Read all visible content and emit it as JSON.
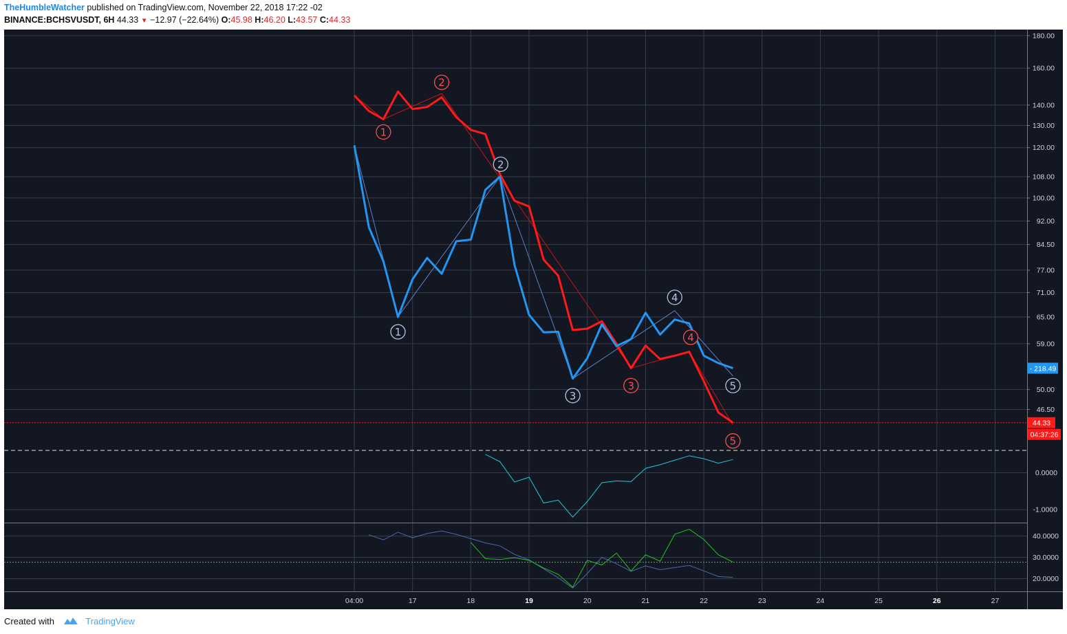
{
  "header": {
    "author": "TheHumbleWatcher",
    "published": "published on TradingView.com, November 22, 2018 17:22 -02",
    "symbol": "BINANCE:BCHSVUSDT, 6H",
    "last": "44.33",
    "change": "−12.97 (−22.64%)",
    "o_label": "O:",
    "o": "45.98",
    "h_label": "H:",
    "h": "46.20",
    "l_label": "L:",
    "l": "43.57",
    "c_label": "C:",
    "c": "44.33"
  },
  "footer": {
    "created": "Created with",
    "brand": "TradingView"
  },
  "colors": {
    "bg": "#131722",
    "grid": "#363c4e",
    "red": "#ff1a1a",
    "blue": "#2196f3",
    "cyan": "#26c6da",
    "green": "#22c322",
    "slate": "#4a6ba8",
    "text": "#d1d4dc"
  },
  "chart_data": [
    {
      "type": "line",
      "panel": "price",
      "y_scale": "log",
      "ylim": [
        40.5,
        184
      ],
      "x_ticks": [
        "04:00",
        "17",
        "18",
        "19",
        "20",
        "21",
        "22",
        "23",
        "24",
        "25",
        "26",
        "27"
      ],
      "bold_ticks": [
        "19",
        "26"
      ],
      "y_ticks": [
        "180.00",
        "160.00",
        "140.00",
        "130.00",
        "120.00",
        "108.00",
        "100.00",
        "92.00",
        "84.50",
        "77.00",
        "71.00",
        "65.00",
        "59.00",
        "50.00",
        "46.50"
      ],
      "series": [
        {
          "color": "red",
          "values": [
            145,
            137,
            133,
            147,
            138,
            139,
            144,
            134,
            128,
            126,
            109,
            99,
            97,
            80,
            75.5,
            62,
            62.3,
            64,
            59,
            54,
            58.6,
            55.8,
            56.5,
            57.3,
            51.5,
            46,
            44.33
          ]
        },
        {
          "color": "blue",
          "values": [
            121,
            90,
            79.5,
            65,
            74.5,
            80.5,
            76,
            85.5,
            86,
            103,
            108,
            78.5,
            65.5,
            61.5,
            61.6,
            52,
            56,
            63.3,
            58.5,
            60,
            66,
            61,
            64.4,
            63.5,
            56.5,
            55,
            54
          ]
        }
      ],
      "waves": [
        {
          "color": "red",
          "points": [
            [
              0,
              145
            ],
            [
              2,
              133
            ],
            [
              6,
              146
            ],
            [
              19,
              54
            ],
            [
              23,
              57.3
            ],
            [
              26,
              44
            ]
          ]
        },
        {
          "color": "blue",
          "points": [
            [
              0,
              121
            ],
            [
              3,
              65
            ],
            [
              10,
              108
            ],
            [
              15,
              52
            ],
            [
              22,
              66.5
            ],
            [
              26,
              52.5
            ]
          ]
        }
      ],
      "markers": [
        {
          "text": "1",
          "color": "red",
          "i": 2,
          "v": 127
        },
        {
          "text": "2",
          "color": "red",
          "i": 6,
          "v": 152
        },
        {
          "text": "3",
          "color": "red",
          "i": 19,
          "v": 50.7
        },
        {
          "text": "4",
          "color": "red",
          "i": 23.1,
          "v": 60.4
        },
        {
          "text": "5",
          "color": "red",
          "i": 26,
          "v": 41.5
        },
        {
          "text": "1",
          "color": "blue",
          "i": 3,
          "v": 61.6
        },
        {
          "text": "2",
          "color": "blue",
          "i": 10.05,
          "v": 113
        },
        {
          "text": "3",
          "color": "blue",
          "i": 15,
          "v": 48.9
        },
        {
          "text": "4",
          "color": "blue",
          "i": 22,
          "v": 69.8
        },
        {
          "text": "5",
          "color": "blue",
          "i": 26,
          "v": 50.7
        }
      ],
      "price_line": 44.33,
      "labels": {
        "blue_tag": "218.49",
        "price_tag": "44.33",
        "countdown": "04:37:26"
      }
    },
    {
      "type": "line",
      "panel": "oscillator",
      "ylim": [
        -1.35,
        0.55
      ],
      "y_ticks": [
        "0.0000",
        "-1.0000"
      ],
      "series": [
        {
          "color": "cyan",
          "start_index": 9,
          "values": [
            0.5,
            0.3,
            -0.25,
            -0.12,
            -0.82,
            -0.74,
            -1.2,
            -0.78,
            -0.27,
            -0.22,
            -0.24,
            0.12,
            0.22,
            0.34,
            0.46,
            0.38,
            0.26,
            0.36
          ]
        }
      ]
    },
    {
      "type": "line",
      "panel": "dmi",
      "ylim": [
        14,
        46
      ],
      "y_ticks": [
        "40.0000",
        "30.0000",
        "20.0000"
      ],
      "hline": 27.7,
      "series": [
        {
          "color": "slate",
          "start_index": 1,
          "values": [
            40.6,
            38.2,
            41.8,
            39.2,
            41.2,
            42.4,
            40.8,
            38.8,
            36.8,
            35.4,
            31.4,
            28.8,
            24.6,
            20.4,
            15.6,
            22.4,
            30,
            27,
            23.4,
            26,
            24.2,
            25.2,
            26.2,
            23.6,
            21,
            20.6
          ]
        },
        {
          "color": "green",
          "start_index": 8,
          "values": [
            37,
            29.4,
            29,
            29.8,
            28.6,
            25,
            22,
            16,
            28.6,
            26.4,
            32,
            23.6,
            31.2,
            28.2,
            40.8,
            43.2,
            38.4,
            31.2,
            27.8
          ]
        }
      ]
    }
  ]
}
